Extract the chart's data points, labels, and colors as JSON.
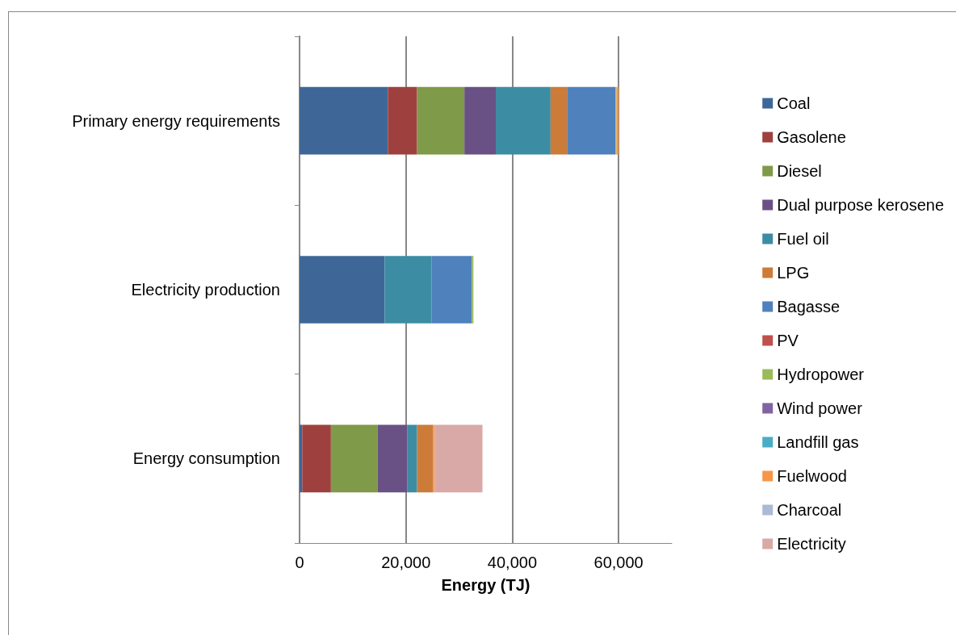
{
  "chart_data": {
    "type": "bar",
    "orientation": "horizontal",
    "stacked": true,
    "categories": [
      "Primary energy requirements",
      "Electricity production",
      "Energy consumption"
    ],
    "xlabel": "Energy (TJ)",
    "xlim": [
      0,
      70000
    ],
    "xticks": [
      0,
      {
        "value": 20000,
        "label": "20,000"
      },
      {
        "value": 40000,
        "label": "40,000"
      },
      {
        "value": 60000,
        "label": "60,000"
      }
    ],
    "grid": "x",
    "legend": "right",
    "series": [
      {
        "name": "Coal",
        "color": "#3e6797",
        "values": [
          16600,
          16000,
          500
        ]
      },
      {
        "name": "Gasolene",
        "color": "#9e413e",
        "values": [
          5500,
          null,
          5400
        ]
      },
      {
        "name": "Diesel",
        "color": "#7f9a48",
        "values": [
          8900,
          null,
          8800
        ]
      },
      {
        "name": "Dual purpose kerosene",
        "color": "#695185",
        "values": [
          5900,
          null,
          5600
        ]
      },
      {
        "name": "Fuel oil",
        "color": "#3c8da3",
        "values": [
          10300,
          8800,
          1800
        ]
      },
      {
        "name": "LPG",
        "color": "#cc7b38",
        "values": [
          3100,
          null,
          3000
        ]
      },
      {
        "name": "Bagasse",
        "color": "#4f81bd",
        "values": [
          9100,
          7600,
          null
        ]
      },
      {
        "name": "PV",
        "color": "#c0504d",
        "values": [
          null,
          null,
          null
        ]
      },
      {
        "name": "Hydropower",
        "color": "#9bbb59",
        "values": [
          200,
          300,
          null
        ]
      },
      {
        "name": "Wind power",
        "color": "#8064a2",
        "values": [
          null,
          null,
          null
        ]
      },
      {
        "name": "Landfill gas",
        "color": "#4bacc6",
        "values": [
          null,
          null,
          null
        ]
      },
      {
        "name": "Fuelwood",
        "color": "#f79646",
        "values": [
          400,
          null,
          300
        ]
      },
      {
        "name": "Charcoal",
        "color": "#aabad7",
        "values": [
          null,
          null,
          null
        ]
      },
      {
        "name": "Electricity",
        "color": "#d9a9a8",
        "values": [
          null,
          null,
          9000
        ]
      }
    ]
  }
}
